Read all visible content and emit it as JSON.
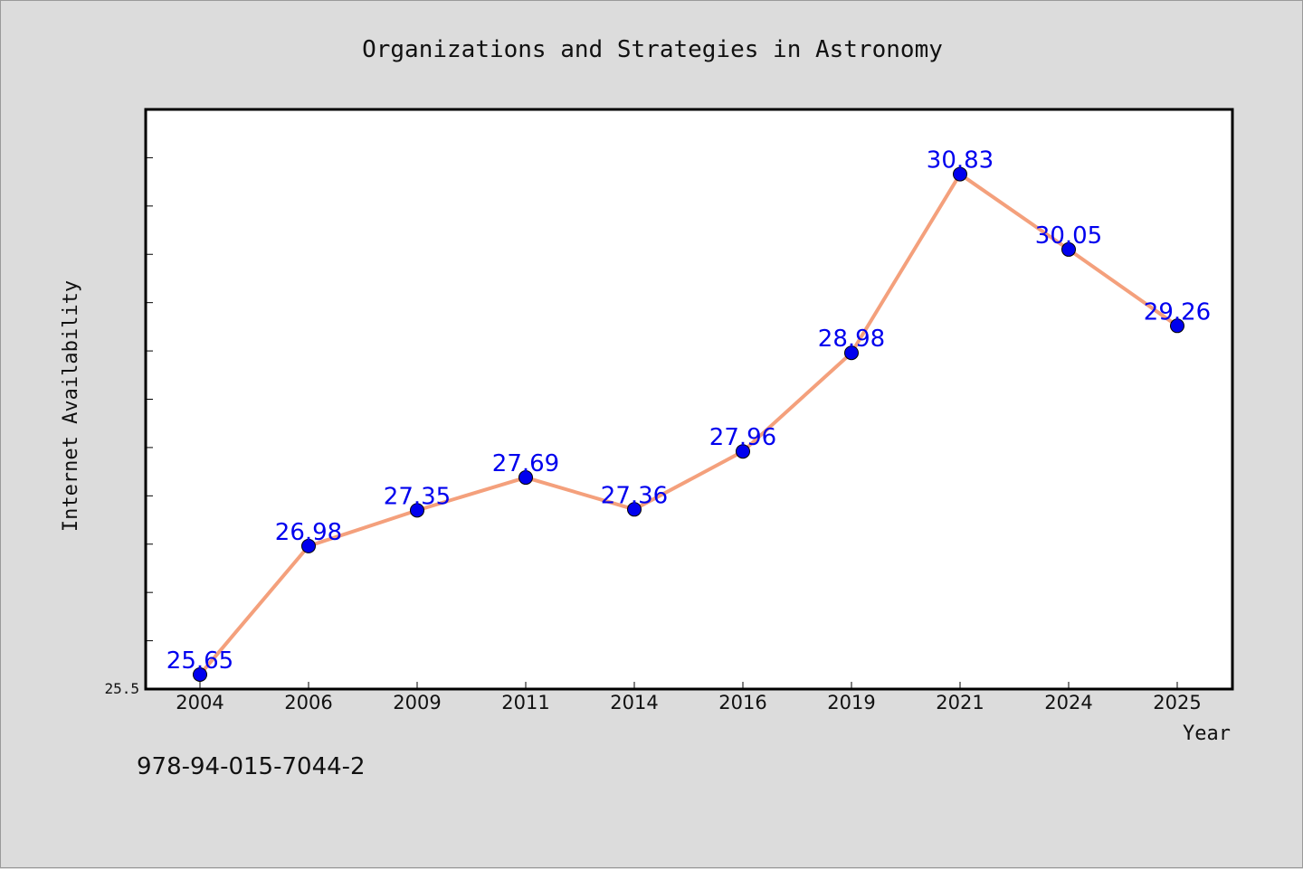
{
  "chart_data": {
    "type": "line",
    "title": "Organizations and Strategies in Astronomy",
    "xlabel": "Year",
    "ylabel": "Internet Availability",
    "categories": [
      "2004",
      "2006",
      "2009",
      "2011",
      "2014",
      "2016",
      "2019",
      "2021",
      "2024",
      "2025"
    ],
    "series": [
      {
        "values": [
          25.65,
          26.98,
          27.35,
          27.69,
          27.36,
          27.96,
          28.98,
          30.83,
          30.05,
          29.26
        ]
      }
    ],
    "data_labels": [
      "25.65",
      "26.98",
      "27.35",
      "27.69",
      "27.36",
      "27.96",
      "28.98",
      "30.83",
      "30.05",
      "29.26"
    ],
    "ylim": [
      25.5,
      31.5
    ],
    "y_tick_label": "25.5",
    "y_minor_step": 0.5,
    "grid": false,
    "legend": "none",
    "colors": {
      "line": "#f4a07c",
      "marker": "#0000ee",
      "data_label": "#0000ee",
      "plot_background": "#ffffff",
      "figure_background": "#dcdcdc"
    }
  },
  "footer": {
    "code": "978-94-015-7044-2"
  }
}
